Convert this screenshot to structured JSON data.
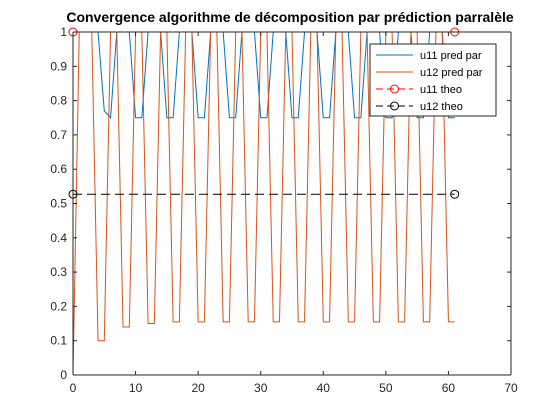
{
  "chart_data": {
    "type": "line",
    "title": "Convergence algorithme de décomposition par prédiction parralèle",
    "xlabel": "",
    "ylabel": "",
    "xlim": [
      0,
      70
    ],
    "ylim": [
      0,
      1
    ],
    "x_ticks": [
      "0",
      "10",
      "20",
      "30",
      "40",
      "50",
      "60",
      "70"
    ],
    "y_ticks": [
      "0",
      "0.1",
      "0.2",
      "0.3",
      "0.4",
      "0.5",
      "0.6",
      "0.7",
      "0.8",
      "0.9",
      "1"
    ],
    "x_tick_values": [
      0,
      10,
      20,
      30,
      40,
      50,
      60,
      70
    ],
    "y_tick_values": [
      0,
      0.1,
      0.2,
      0.3,
      0.4,
      0.5,
      0.6,
      0.7,
      0.8,
      0.9,
      1
    ],
    "grid": false,
    "legend_position": "top-right",
    "series": [
      {
        "name": "u11 pred par",
        "color": "#0072BD",
        "style": "solid",
        "x": [
          0,
          1,
          2,
          3,
          4,
          5,
          6,
          7,
          8,
          9,
          10,
          11,
          12,
          13,
          14,
          15,
          16,
          17,
          18,
          19,
          20,
          21,
          22,
          23,
          24,
          25,
          26,
          27,
          28,
          29,
          30,
          31,
          32,
          33,
          34,
          35,
          36,
          37,
          38,
          39,
          40,
          41,
          42,
          43,
          44,
          45,
          46,
          47,
          48,
          49,
          50,
          51,
          52,
          53,
          54,
          55,
          56,
          57,
          58,
          59,
          60,
          61
        ],
        "values": [
          1,
          1,
          1,
          1,
          1,
          0.77,
          0.75,
          1,
          1,
          1,
          0.75,
          0.75,
          1,
          1,
          1,
          0.75,
          0.75,
          1,
          1,
          1,
          0.75,
          0.75,
          1,
          1,
          1,
          0.75,
          0.75,
          1,
          1,
          1,
          0.75,
          0.75,
          1,
          1,
          1,
          0.75,
          0.75,
          1,
          1,
          1,
          0.75,
          0.75,
          1,
          1,
          1,
          0.75,
          0.75,
          1,
          1,
          1,
          0.75,
          0.75,
          1,
          1,
          1,
          0.75,
          0.75,
          1,
          1,
          1,
          0.75,
          0.75
        ]
      },
      {
        "name": "u12 pred par",
        "color": "#D95319",
        "style": "solid",
        "x": [
          0,
          1,
          2,
          3,
          4,
          5,
          6,
          7,
          8,
          9,
          10,
          11,
          12,
          13,
          14,
          15,
          16,
          17,
          18,
          19,
          20,
          21,
          22,
          23,
          24,
          25,
          26,
          27,
          28,
          29,
          30,
          31,
          32,
          33,
          34,
          35,
          36,
          37,
          38,
          39,
          40,
          41,
          42,
          43,
          44,
          45,
          46,
          47,
          48,
          49,
          50,
          51,
          52,
          53,
          54,
          55,
          56,
          57,
          58,
          59,
          60,
          61
        ],
        "values": [
          0,
          1,
          1,
          1,
          0.1,
          0.1,
          1,
          1,
          0.14,
          0.14,
          1,
          1,
          0.15,
          0.15,
          1,
          1,
          0.155,
          0.155,
          1,
          1,
          0.155,
          0.155,
          1,
          1,
          0.155,
          0.155,
          1,
          1,
          0.155,
          0.155,
          1,
          1,
          0.155,
          0.155,
          1,
          1,
          0.155,
          0.155,
          1,
          1,
          0.155,
          0.155,
          1,
          1,
          0.155,
          0.155,
          1,
          1,
          0.155,
          0.155,
          1,
          1,
          0.155,
          0.155,
          1,
          1,
          0.155,
          0.155,
          1,
          1,
          0.155,
          0.155
        ]
      },
      {
        "name": "u11 theo",
        "color": "#FF0000",
        "style": "dashed-circle",
        "x": [
          0,
          61
        ],
        "values": [
          1,
          1
        ]
      },
      {
        "name": "u12 theo",
        "color": "#000000",
        "style": "dashed-circle",
        "x": [
          0,
          61
        ],
        "values": [
          0.527,
          0.527
        ]
      }
    ]
  },
  "colors": {
    "axis": "#262626",
    "background": "#ffffff"
  }
}
